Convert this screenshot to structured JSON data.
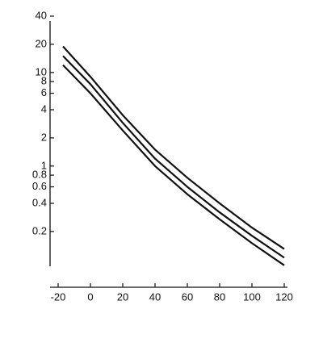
{
  "chart_data": {
    "type": "line",
    "log_y": true,
    "x": [
      -17,
      0,
      20,
      40,
      60,
      80,
      100,
      120
    ],
    "series": [
      {
        "color": "#111111",
        "values": [
          19,
          9,
          3.5,
          1.5,
          0.75,
          0.4,
          0.22,
          0.13
        ]
      },
      {
        "color": "#111111",
        "values": [
          15,
          7.5,
          2.9,
          1.2,
          0.6,
          0.32,
          0.18,
          0.105
        ]
      },
      {
        "color": "#111111",
        "values": [
          12,
          6,
          2.4,
          1.0,
          0.5,
          0.27,
          0.15,
          0.087
        ]
      }
    ],
    "xlim": [
      -25,
      122
    ],
    "xticks": [
      -20,
      0,
      20,
      40,
      60,
      80,
      100,
      120
    ],
    "ylim": [
      0.085,
      40
    ],
    "yticks": [
      40,
      20,
      10,
      8,
      6,
      4,
      2,
      1,
      0.8,
      0.6,
      0.4,
      0.2
    ]
  }
}
